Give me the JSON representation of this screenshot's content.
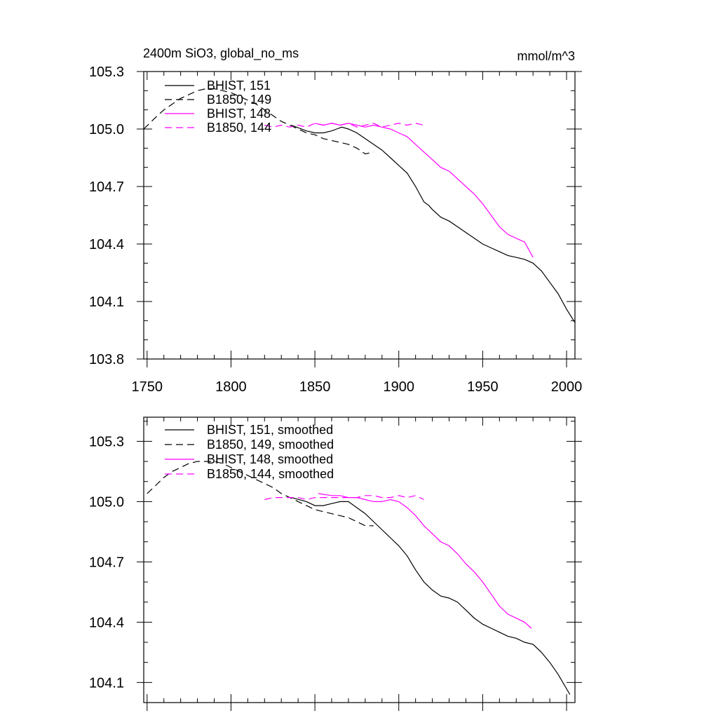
{
  "chart_data": [
    {
      "type": "line",
      "title": "2400m SiO3, global_no_ms",
      "units": "mmol/m^3",
      "xlim": [
        1748,
        2005
      ],
      "ylim": [
        103.8,
        105.3
      ],
      "xticks": [
        1750,
        1800,
        1850,
        1900,
        1950,
        2000
      ],
      "yticks": [
        103.8,
        104.1,
        104.4,
        104.7,
        105.0,
        105.3
      ],
      "xtick_labels": [
        "1750",
        "1800",
        "1850",
        "1900",
        "1950",
        "2000"
      ],
      "ytick_labels": [
        "103.8",
        "104.1",
        "104.4",
        "104.7",
        "105.0",
        "105.3"
      ],
      "grid": false,
      "legend_position": "top-left",
      "series": [
        {
          "name": "BHIST, 151",
          "color": "#000000",
          "dash": "solid",
          "x": [
            1836,
            1845,
            1850,
            1855,
            1860,
            1863,
            1866,
            1870,
            1875,
            1880,
            1885,
            1890,
            1895,
            1900,
            1905,
            1910,
            1915,
            1918,
            1920,
            1925,
            1930,
            1935,
            1940,
            1945,
            1950,
            1955,
            1960,
            1965,
            1970,
            1975,
            1980,
            1985,
            1990,
            1995,
            2000,
            2005
          ],
          "y": [
            105.02,
            104.99,
            104.98,
            104.98,
            104.99,
            105.0,
            105.01,
            105.0,
            104.98,
            104.95,
            104.92,
            104.89,
            104.85,
            104.81,
            104.77,
            104.7,
            104.62,
            104.6,
            104.58,
            104.54,
            104.52,
            104.49,
            104.46,
            104.43,
            104.4,
            104.38,
            104.36,
            104.34,
            104.33,
            104.32,
            104.3,
            104.26,
            104.2,
            104.14,
            104.06,
            103.99
          ]
        },
        {
          "name": "B1850, 149",
          "color": "#000000",
          "dash": "dashed",
          "x": [
            1748,
            1755,
            1760,
            1765,
            1770,
            1775,
            1780,
            1785,
            1790,
            1795,
            1800,
            1805,
            1810,
            1815,
            1820,
            1825,
            1830,
            1835,
            1840,
            1845,
            1850,
            1855,
            1860,
            1865,
            1870,
            1875,
            1880,
            1885
          ],
          "y": [
            105.0,
            105.06,
            105.1,
            105.13,
            105.16,
            105.18,
            105.2,
            105.21,
            105.21,
            105.2,
            105.19,
            105.17,
            105.15,
            105.13,
            105.1,
            105.07,
            105.04,
            105.02,
            105.0,
            104.98,
            104.97,
            104.95,
            104.94,
            104.93,
            104.92,
            104.9,
            104.87,
            104.88
          ]
        },
        {
          "name": "BHIST, 148",
          "color": "#ff00ff",
          "dash": "solid",
          "x": [
            1850,
            1855,
            1860,
            1865,
            1870,
            1875,
            1880,
            1885,
            1890,
            1895,
            1900,
            1905,
            1910,
            1915,
            1920,
            1925,
            1930,
            1935,
            1940,
            1945,
            1950,
            1955,
            1960,
            1965,
            1970,
            1975,
            1980
          ],
          "y": [
            105.03,
            105.02,
            105.03,
            105.02,
            105.03,
            105.02,
            105.01,
            105.02,
            105.01,
            105.0,
            104.98,
            104.96,
            104.92,
            104.88,
            104.84,
            104.8,
            104.78,
            104.74,
            104.7,
            104.66,
            104.61,
            104.55,
            104.49,
            104.45,
            104.43,
            104.41,
            104.33
          ]
        },
        {
          "name": "B1850, 144",
          "color": "#ff00ff",
          "dash": "dashed",
          "x": [
            1820,
            1825,
            1830,
            1835,
            1840,
            1845,
            1850,
            1855,
            1860,
            1865,
            1870,
            1875,
            1880,
            1885,
            1890,
            1895,
            1900,
            1905,
            1910,
            1915
          ],
          "y": [
            105.02,
            105.01,
            105.02,
            105.01,
            105.02,
            105.01,
            105.03,
            105.02,
            105.03,
            105.02,
            105.03,
            105.01,
            105.02,
            105.03,
            105.01,
            105.02,
            105.03,
            105.02,
            105.03,
            105.02
          ]
        }
      ]
    },
    {
      "type": "line",
      "xlim": [
        1748,
        2005
      ],
      "ylim": [
        104.0,
        105.42
      ],
      "yticks": [
        104.1,
        104.4,
        104.7,
        105.0,
        105.3
      ],
      "ytick_labels": [
        "104.1",
        "104.4",
        "104.7",
        "105.0",
        "105.3"
      ],
      "grid": false,
      "legend_position": "top-left",
      "series": [
        {
          "name": "BHIST, 151, smoothed",
          "color": "#000000",
          "dash": "solid",
          "x": [
            1836,
            1845,
            1850,
            1855,
            1860,
            1865,
            1870,
            1875,
            1880,
            1885,
            1890,
            1895,
            1900,
            1905,
            1910,
            1915,
            1920,
            1925,
            1930,
            1935,
            1940,
            1945,
            1950,
            1955,
            1960,
            1965,
            1970,
            1975,
            1980,
            1985,
            1990,
            1995,
            2002
          ],
          "y": [
            105.02,
            105.0,
            104.98,
            104.98,
            104.99,
            105.0,
            105.0,
            104.97,
            104.94,
            104.9,
            104.86,
            104.82,
            104.78,
            104.73,
            104.66,
            104.6,
            104.56,
            104.53,
            104.52,
            104.5,
            104.46,
            104.42,
            104.39,
            104.37,
            104.35,
            104.33,
            104.32,
            104.3,
            104.29,
            104.25,
            104.2,
            104.14,
            104.04
          ]
        },
        {
          "name": "B1850, 149, smoothed",
          "color": "#000000",
          "dash": "dashed",
          "x": [
            1750,
            1755,
            1760,
            1765,
            1770,
            1775,
            1780,
            1785,
            1790,
            1795,
            1800,
            1805,
            1810,
            1815,
            1820,
            1825,
            1830,
            1835,
            1840,
            1845,
            1850,
            1855,
            1860,
            1865,
            1870,
            1875,
            1880,
            1885
          ],
          "y": [
            105.04,
            105.08,
            105.12,
            105.15,
            105.17,
            105.19,
            105.2,
            105.2,
            105.2,
            105.19,
            105.17,
            105.15,
            105.13,
            105.11,
            105.09,
            105.07,
            105.04,
            105.02,
            105.0,
            104.98,
            104.96,
            104.95,
            104.94,
            104.93,
            104.92,
            104.9,
            104.88,
            104.88
          ]
        },
        {
          "name": "BHIST, 148, smoothed",
          "color": "#ff00ff",
          "dash": "solid",
          "x": [
            1852,
            1860,
            1865,
            1870,
            1875,
            1880,
            1885,
            1890,
            1895,
            1900,
            1905,
            1910,
            1915,
            1920,
            1925,
            1930,
            1935,
            1940,
            1945,
            1950,
            1955,
            1960,
            1965,
            1970,
            1975,
            1979
          ],
          "y": [
            105.04,
            105.03,
            105.03,
            105.02,
            105.02,
            105.01,
            105.0,
            105.0,
            105.01,
            105.0,
            104.97,
            104.93,
            104.88,
            104.84,
            104.8,
            104.78,
            104.74,
            104.69,
            104.65,
            104.6,
            104.54,
            104.48,
            104.44,
            104.42,
            104.4,
            104.37
          ]
        },
        {
          "name": "B1850, 144, smoothed",
          "color": "#ff00ff",
          "dash": "dashed",
          "x": [
            1820,
            1825,
            1830,
            1835,
            1840,
            1845,
            1850,
            1855,
            1860,
            1865,
            1870,
            1875,
            1880,
            1885,
            1890,
            1895,
            1900,
            1905,
            1910,
            1915
          ],
          "y": [
            105.01,
            105.02,
            105.02,
            105.02,
            105.02,
            105.01,
            105.02,
            105.02,
            105.02,
            105.02,
            105.02,
            105.02,
            105.03,
            105.03,
            105.02,
            105.02,
            105.03,
            105.02,
            105.03,
            105.01
          ]
        }
      ]
    }
  ]
}
